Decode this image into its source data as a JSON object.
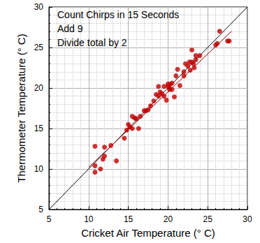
{
  "chart_data": {
    "type": "scatter",
    "x_label": "Cricket Air Temperature (° C)",
    "y_label": "Thermometer Temperature (° C)",
    "annotations": [
      "Count Chirps in 15 Seconds",
      "Add 9",
      "Divide total by 2"
    ],
    "xlim": [
      5,
      30
    ],
    "xticks": [
      5,
      10,
      15,
      20,
      25,
      30
    ],
    "ylim": [
      5,
      30
    ],
    "yticks": [
      5,
      10,
      15,
      20,
      25,
      30
    ],
    "grid": true,
    "series": [
      {
        "type": "scatter",
        "color": "#c00000",
        "marker": "circle",
        "x": [
          10.8,
          10.8,
          10.8,
          11.5,
          11.8,
          12.0,
          12.0,
          12.8,
          13.5,
          14.5,
          14.8,
          15.0,
          15.2,
          15.5,
          15.5,
          15.8,
          16.0,
          16.3,
          16.5,
          17.0,
          17.2,
          17.5,
          17.8,
          18.2,
          18.5,
          18.8,
          18.8,
          19.0,
          19.2,
          19.5,
          19.5,
          19.8,
          20.0,
          20.0,
          20.2,
          20.2,
          20.3,
          20.5,
          20.5,
          20.8,
          21.0,
          21.2,
          21.5,
          22.0,
          22.0,
          22.2,
          22.5,
          22.7,
          22.8,
          23.0,
          23.0,
          23.2,
          23.3,
          23.5,
          23.5,
          24.0,
          26.0,
          26.2,
          26.5,
          27.5,
          27.7
        ],
        "values": [
          12.8,
          10.4,
          9.6,
          10.0,
          11.2,
          11.6,
          12.7,
          12.9,
          11.0,
          13.8,
          14.8,
          15.5,
          15.2,
          16.5,
          15.0,
          16.3,
          16.2,
          15.0,
          16.5,
          17.2,
          17.2,
          17.3,
          17.8,
          18.4,
          19.2,
          19.0,
          20.2,
          19.5,
          19.3,
          19.0,
          20.2,
          18.5,
          20.5,
          20.2,
          20.0,
          19.8,
          20.5,
          19.8,
          20.6,
          18.9,
          21.5,
          22.3,
          20.3,
          21.5,
          22.0,
          23.0,
          22.7,
          23.2,
          22.2,
          24.7,
          23.2,
          23.0,
          22.5,
          24.0,
          23.5,
          24.0,
          25.3,
          25.5,
          27.0,
          25.8,
          25.8
        ]
      },
      {
        "type": "line",
        "color": "#000000",
        "line_style": "solid",
        "x": [
          5,
          30
        ],
        "values": [
          5,
          30
        ]
      },
      {
        "type": "line",
        "color": "#8b0000",
        "line_style": "solid",
        "x": [
          10,
          28
        ],
        "values": [
          10.2,
          27.0
        ]
      }
    ]
  }
}
